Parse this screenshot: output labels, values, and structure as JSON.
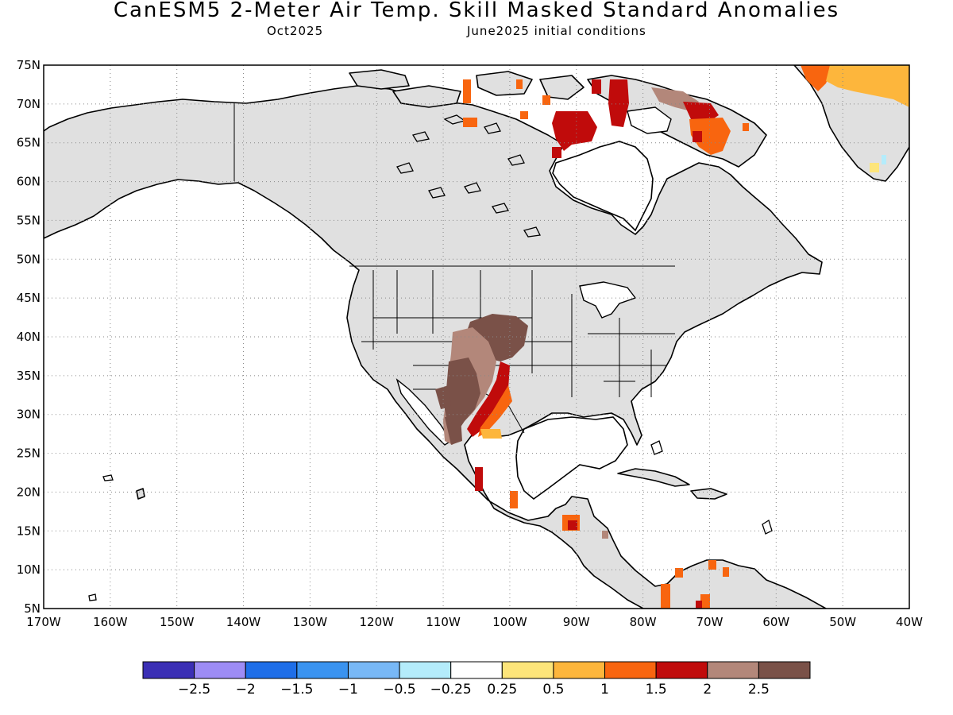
{
  "header": {
    "title": "CanESM5 2-Meter Air Temp. Skill Masked Standard Anomalies",
    "target_month": "Oct2025",
    "init": "June2025 initial conditions"
  },
  "axes": {
    "lat_labels": [
      "75N",
      "70N",
      "65N",
      "60N",
      "55N",
      "50N",
      "45N",
      "40N",
      "35N",
      "30N",
      "25N",
      "20N",
      "15N",
      "10N",
      "5N"
    ],
    "lon_labels": [
      "170W",
      "160W",
      "150W",
      "140W",
      "130W",
      "120W",
      "110W",
      "100W",
      "90W",
      "80W",
      "70W",
      "60W",
      "50W",
      "40W"
    ],
    "lon_range": [
      -170,
      -40
    ],
    "lat_range": [
      5,
      75
    ],
    "grid": "dotted"
  },
  "colorbar": {
    "colors": [
      "#3b2fb5",
      "#9d8cf5",
      "#1e6ee8",
      "#3a93f0",
      "#78b8f6",
      "#b4ecfb",
      "#ffffff",
      "#fde57a",
      "#fdb63c",
      "#f8650f",
      "#c00b0b",
      "#b3877a",
      "#7a5148"
    ],
    "labels": [
      "-2.5",
      "-2",
      "-1.5",
      "-1",
      "-0.5",
      "-0.25",
      "0.25",
      "0.5",
      "1",
      "1.5",
      "2",
      "2.5"
    ]
  },
  "colors": {
    "masked_land": "#e0e0e0",
    "coastline": "#000000"
  }
}
